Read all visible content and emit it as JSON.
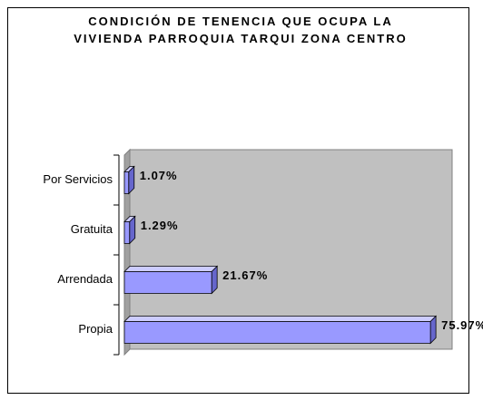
{
  "chart_data": {
    "type": "bar3d-horizontal",
    "title": "CONDICIÓN DE TENENCIA QUE OCUPA LA VIVIENDA PARROQUIA TARQUI ZONA CENTRO",
    "categories": [
      "Por Servicios",
      "Gratuita",
      "Arrendada",
      "Propia"
    ],
    "values": [
      1.07,
      1.29,
      21.67,
      75.97
    ],
    "value_labels": [
      "1.07%",
      "1.29%",
      "21.67%",
      "75.97%"
    ],
    "color": "#9999ff",
    "xlim": [
      0,
      80
    ]
  }
}
